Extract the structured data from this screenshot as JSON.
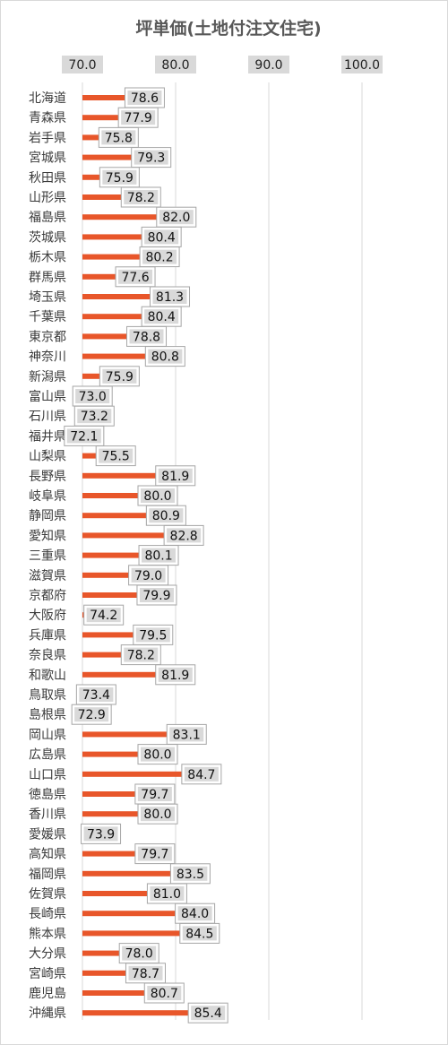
{
  "chart_data": {
    "type": "bar",
    "orientation": "horizontal",
    "title": "坪単価(土地付注文住宅)",
    "xlim": [
      70.0,
      100.0
    ],
    "ticks": [
      "70.0",
      "80.0",
      "90.0",
      "100.0"
    ],
    "tick_values": [
      70,
      80,
      90,
      100
    ],
    "grid": true,
    "bar_color": "#E8562A",
    "categories": [
      "北海道",
      "青森県",
      "岩手県",
      "宮城県",
      "秋田県",
      "山形県",
      "福島県",
      "茨城県",
      "栃木県",
      "群馬県",
      "埼玉県",
      "千葉県",
      "東京都",
      "神奈川",
      "新潟県",
      "富山県",
      "石川県",
      "福井県",
      "山梨県",
      "長野県",
      "岐阜県",
      "静岡県",
      "愛知県",
      "三重県",
      "滋賀県",
      "京都府",
      "大阪府",
      "兵庫県",
      "奈良県",
      "和歌山",
      "鳥取県",
      "島根県",
      "岡山県",
      "広島県",
      "山口県",
      "徳島県",
      "香川県",
      "愛媛県",
      "高知県",
      "福岡県",
      "佐賀県",
      "長崎県",
      "熊本県",
      "大分県",
      "宮崎県",
      "鹿児島",
      "沖縄県"
    ],
    "values": [
      78.6,
      77.9,
      75.8,
      79.3,
      75.9,
      78.2,
      82.0,
      80.4,
      80.2,
      77.6,
      81.3,
      80.4,
      78.8,
      80.8,
      75.9,
      73.0,
      73.2,
      72.1,
      75.5,
      81.9,
      80.0,
      80.9,
      82.8,
      80.1,
      79.0,
      79.9,
      74.2,
      79.5,
      78.2,
      81.9,
      73.4,
      72.9,
      83.1,
      80.0,
      84.7,
      79.7,
      80.0,
      73.9,
      79.7,
      83.5,
      81.0,
      84.0,
      84.5,
      78.0,
      78.7,
      80.7,
      85.4
    ],
    "labels": [
      "78.6",
      "77.9",
      "75.8",
      "79.3",
      "75.9",
      "78.2",
      "82.0",
      "80.4",
      "80.2",
      "77.6",
      "81.3",
      "80.4",
      "78.8",
      "80.8",
      "75.9",
      "73.0",
      "73.2",
      "72.1",
      "75.5",
      "81.9",
      "80.0",
      "80.9",
      "82.8",
      "80.1",
      "79.0",
      "79.9",
      "74.2",
      "79.5",
      "78.2",
      "81.9",
      "73.4",
      "72.9",
      "83.1",
      "80.0",
      "84.7",
      "79.7",
      "80.0",
      "73.9",
      "79.7",
      "83.5",
      "81.0",
      "84.0",
      "84.5",
      "78.0",
      "78.7",
      "80.7",
      "85.4"
    ]
  }
}
